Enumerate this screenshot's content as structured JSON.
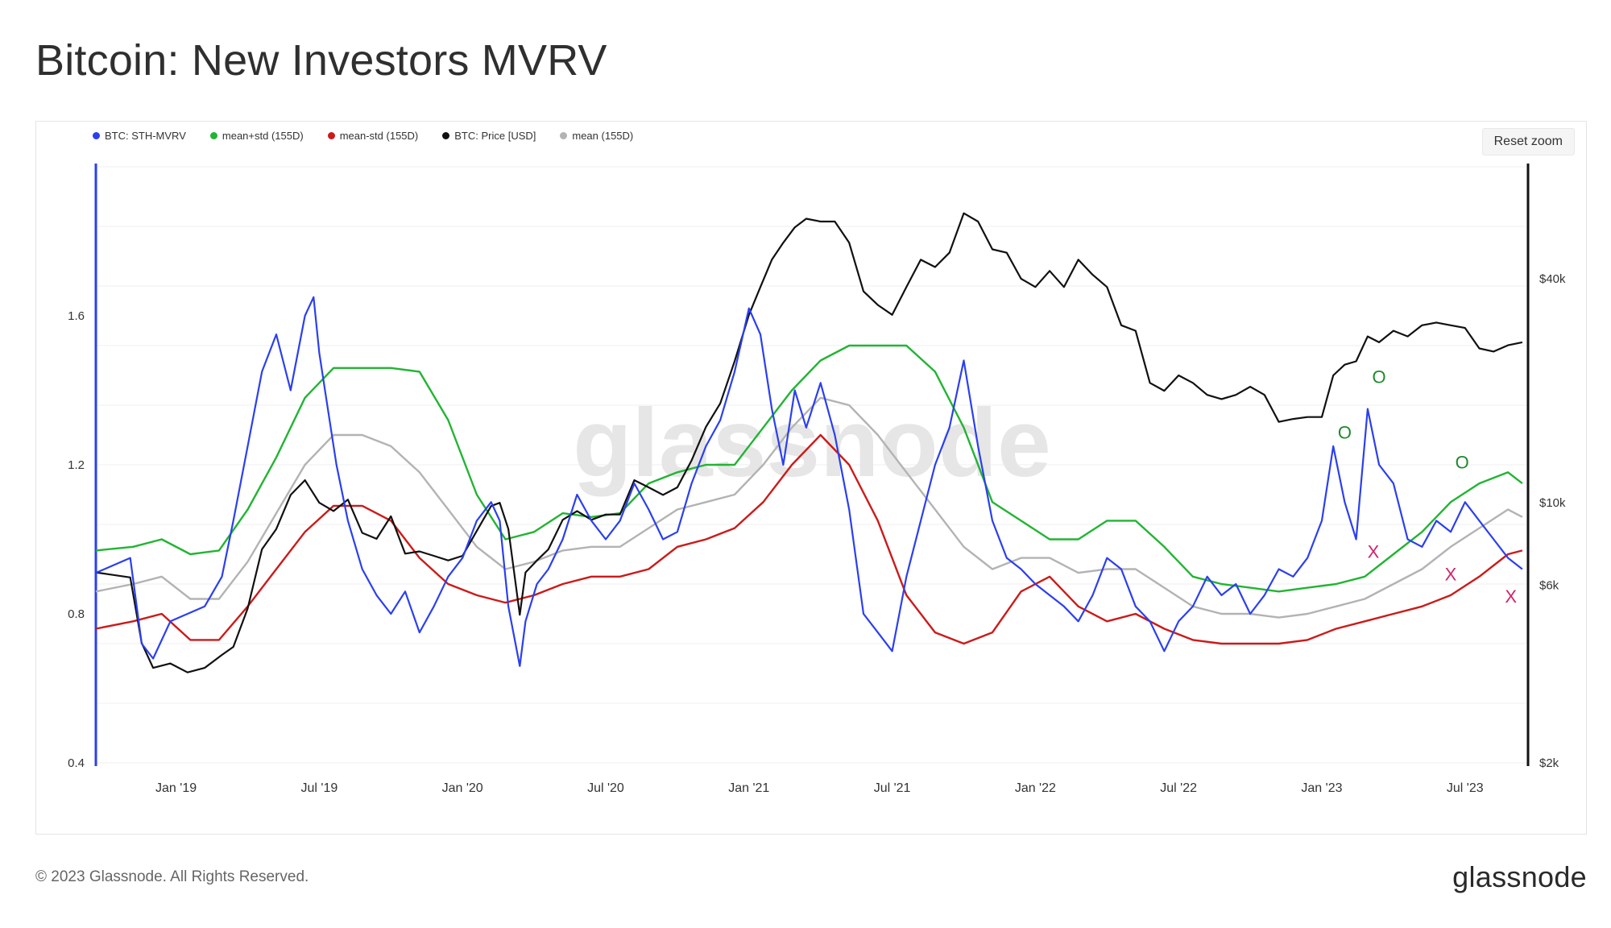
{
  "title": "Bitcoin: New Investors MVRV",
  "reset_zoom_label": "Reset zoom",
  "footer": {
    "copyright": "© 2023 Glassnode. All Rights Reserved.",
    "logo_text": "glassnode"
  },
  "watermark": "glassnode",
  "chart_data": {
    "type": "line",
    "legend_placement": "top-left",
    "grid": true,
    "x_tick_labels": [
      "Jan '19",
      "Jul '19",
      "Jan '20",
      "Jul '20",
      "Jan '21",
      "Jul '21",
      "Jan '22",
      "Jul '22",
      "Jan '23",
      "Jul '23"
    ],
    "x_tick_positions": [
      2019.0,
      2019.5,
      2020.0,
      2020.5,
      2021.0,
      2021.5,
      2022.0,
      2022.5,
      2023.0,
      2023.5
    ],
    "x_range": [
      2018.72,
      2023.72
    ],
    "y_left": {
      "ticks": [
        "0.4",
        "0.8",
        "1.2",
        "1.6"
      ],
      "tick_values": [
        0.4,
        0.8,
        1.2,
        1.6
      ],
      "range": [
        0.4,
        2.0
      ]
    },
    "y_right": {
      "scale": "log",
      "ticks": [
        "$2k",
        "$6k",
        "$10k",
        "$40k"
      ],
      "tick_values": [
        2000,
        6000,
        10000,
        40000
      ],
      "range": [
        2000,
        80000
      ]
    },
    "series": [
      {
        "name": "BTC: STH-MVRV",
        "color": "#2b3ff0",
        "axis": "left",
        "x": [
          2018.72,
          2018.78,
          2018.84,
          2018.88,
          2018.92,
          2018.98,
          2019.04,
          2019.1,
          2019.16,
          2019.2,
          2019.25,
          2019.3,
          2019.35,
          2019.4,
          2019.45,
          2019.48,
          2019.5,
          2019.53,
          2019.56,
          2019.6,
          2019.65,
          2019.7,
          2019.75,
          2019.8,
          2019.85,
          2019.9,
          2019.95,
          2020.0,
          2020.05,
          2020.1,
          2020.13,
          2020.16,
          2020.2,
          2020.22,
          2020.26,
          2020.3,
          2020.35,
          2020.4,
          2020.45,
          2020.5,
          2020.55,
          2020.6,
          2020.65,
          2020.7,
          2020.75,
          2020.8,
          2020.85,
          2020.9,
          2020.95,
          2021.0,
          2021.04,
          2021.08,
          2021.12,
          2021.16,
          2021.2,
          2021.25,
          2021.3,
          2021.35,
          2021.4,
          2021.45,
          2021.5,
          2021.55,
          2021.6,
          2021.65,
          2021.7,
          2021.75,
          2021.8,
          2021.85,
          2021.9,
          2021.95,
          2022.0,
          2022.05,
          2022.1,
          2022.15,
          2022.2,
          2022.25,
          2022.3,
          2022.35,
          2022.4,
          2022.45,
          2022.5,
          2022.55,
          2022.6,
          2022.65,
          2022.7,
          2022.75,
          2022.8,
          2022.85,
          2022.9,
          2022.95,
          2023.0,
          2023.04,
          2023.08,
          2023.12,
          2023.16,
          2023.2,
          2023.25,
          2023.3,
          2023.35,
          2023.4,
          2023.45,
          2023.5,
          2023.55,
          2023.6,
          2023.65,
          2023.7
        ],
        "y": [
          0.91,
          0.93,
          0.95,
          0.72,
          0.68,
          0.78,
          0.8,
          0.82,
          0.9,
          1.05,
          1.25,
          1.45,
          1.55,
          1.4,
          1.6,
          1.65,
          1.5,
          1.35,
          1.2,
          1.05,
          0.92,
          0.85,
          0.8,
          0.86,
          0.75,
          0.82,
          0.9,
          0.95,
          1.05,
          1.1,
          1.05,
          0.82,
          0.66,
          0.78,
          0.88,
          0.92,
          1.0,
          1.12,
          1.05,
          1.0,
          1.05,
          1.15,
          1.08,
          1.0,
          1.02,
          1.15,
          1.25,
          1.32,
          1.45,
          1.62,
          1.55,
          1.35,
          1.2,
          1.4,
          1.3,
          1.42,
          1.28,
          1.08,
          0.8,
          0.75,
          0.7,
          0.9,
          1.05,
          1.2,
          1.3,
          1.48,
          1.25,
          1.05,
          0.95,
          0.92,
          0.88,
          0.85,
          0.82,
          0.78,
          0.85,
          0.95,
          0.92,
          0.82,
          0.78,
          0.7,
          0.78,
          0.82,
          0.9,
          0.85,
          0.88,
          0.8,
          0.85,
          0.92,
          0.9,
          0.95,
          1.05,
          1.25,
          1.1,
          1.0,
          1.35,
          1.2,
          1.15,
          1.0,
          0.98,
          1.05,
          1.02,
          1.1,
          1.05,
          1.0,
          0.95,
          0.92
        ]
      },
      {
        "name": "mean+std (155D)",
        "color": "#22b433",
        "axis": "left",
        "x": [
          2018.72,
          2018.85,
          2018.95,
          2019.05,
          2019.15,
          2019.25,
          2019.35,
          2019.45,
          2019.55,
          2019.65,
          2019.75,
          2019.85,
          2019.95,
          2020.05,
          2020.15,
          2020.25,
          2020.35,
          2020.45,
          2020.55,
          2020.65,
          2020.75,
          2020.85,
          2020.95,
          2021.05,
          2021.15,
          2021.25,
          2021.35,
          2021.45,
          2021.55,
          2021.65,
          2021.75,
          2021.85,
          2021.95,
          2022.05,
          2022.15,
          2022.25,
          2022.35,
          2022.45,
          2022.55,
          2022.65,
          2022.75,
          2022.85,
          2022.95,
          2023.05,
          2023.15,
          2023.25,
          2023.35,
          2023.45,
          2023.55,
          2023.65,
          2023.7
        ],
        "y": [
          0.97,
          0.98,
          1.0,
          0.96,
          0.97,
          1.08,
          1.22,
          1.38,
          1.46,
          1.46,
          1.46,
          1.45,
          1.32,
          1.12,
          1.0,
          1.02,
          1.07,
          1.06,
          1.07,
          1.15,
          1.18,
          1.2,
          1.2,
          1.3,
          1.4,
          1.48,
          1.52,
          1.52,
          1.52,
          1.45,
          1.3,
          1.1,
          1.05,
          1.0,
          1.0,
          1.05,
          1.05,
          0.98,
          0.9,
          0.88,
          0.87,
          0.86,
          0.87,
          0.88,
          0.9,
          0.96,
          1.02,
          1.1,
          1.15,
          1.18,
          1.15
        ]
      },
      {
        "name": "mean-std (155D)",
        "color": "#cc1a1a",
        "axis": "left",
        "x": [
          2018.72,
          2018.85,
          2018.95,
          2019.05,
          2019.15,
          2019.25,
          2019.35,
          2019.45,
          2019.55,
          2019.65,
          2019.75,
          2019.85,
          2019.95,
          2020.05,
          2020.15,
          2020.25,
          2020.35,
          2020.45,
          2020.55,
          2020.65,
          2020.75,
          2020.85,
          2020.95,
          2021.05,
          2021.15,
          2021.25,
          2021.35,
          2021.45,
          2021.55,
          2021.65,
          2021.75,
          2021.85,
          2021.95,
          2022.05,
          2022.15,
          2022.25,
          2022.35,
          2022.45,
          2022.55,
          2022.65,
          2022.75,
          2022.85,
          2022.95,
          2023.05,
          2023.15,
          2023.25,
          2023.35,
          2023.45,
          2023.55,
          2023.65,
          2023.7
        ],
        "y": [
          0.76,
          0.78,
          0.8,
          0.73,
          0.73,
          0.82,
          0.92,
          1.02,
          1.09,
          1.09,
          1.05,
          0.95,
          0.88,
          0.85,
          0.83,
          0.85,
          0.88,
          0.9,
          0.9,
          0.92,
          0.98,
          1.0,
          1.03,
          1.1,
          1.2,
          1.28,
          1.2,
          1.05,
          0.85,
          0.75,
          0.72,
          0.75,
          0.86,
          0.9,
          0.82,
          0.78,
          0.8,
          0.76,
          0.73,
          0.72,
          0.72,
          0.72,
          0.73,
          0.76,
          0.78,
          0.8,
          0.82,
          0.85,
          0.9,
          0.96,
          0.97
        ]
      },
      {
        "name": "BTC: Price [USD]",
        "color": "#111111",
        "axis": "right",
        "x": [
          2018.72,
          2018.78,
          2018.84,
          2018.88,
          2018.92,
          2018.98,
          2019.04,
          2019.1,
          2019.16,
          2019.2,
          2019.25,
          2019.3,
          2019.35,
          2019.4,
          2019.45,
          2019.5,
          2019.55,
          2019.6,
          2019.65,
          2019.7,
          2019.75,
          2019.8,
          2019.85,
          2019.9,
          2019.95,
          2020.0,
          2020.05,
          2020.1,
          2020.13,
          2020.16,
          2020.2,
          2020.22,
          2020.26,
          2020.3,
          2020.35,
          2020.4,
          2020.45,
          2020.5,
          2020.55,
          2020.6,
          2020.65,
          2020.7,
          2020.75,
          2020.8,
          2020.85,
          2020.9,
          2020.95,
          2021.0,
          2021.04,
          2021.08,
          2021.12,
          2021.16,
          2021.2,
          2021.25,
          2021.3,
          2021.35,
          2021.4,
          2021.45,
          2021.5,
          2021.55,
          2021.6,
          2021.65,
          2021.7,
          2021.75,
          2021.8,
          2021.85,
          2021.9,
          2021.95,
          2022.0,
          2022.05,
          2022.1,
          2022.15,
          2022.2,
          2022.25,
          2022.3,
          2022.35,
          2022.4,
          2022.45,
          2022.5,
          2022.55,
          2022.6,
          2022.65,
          2022.7,
          2022.75,
          2022.8,
          2022.85,
          2022.9,
          2022.95,
          2023.0,
          2023.04,
          2023.08,
          2023.12,
          2023.16,
          2023.2,
          2023.25,
          2023.3,
          2023.35,
          2023.4,
          2023.45,
          2023.5,
          2023.55,
          2023.6,
          2023.65,
          2023.7
        ],
        "y": [
          6500,
          6400,
          6300,
          4200,
          3600,
          3700,
          3500,
          3600,
          3900,
          4100,
          5200,
          7500,
          8500,
          10500,
          11500,
          10000,
          9500,
          10200,
          8300,
          8000,
          9200,
          7300,
          7400,
          7200,
          7000,
          7200,
          8400,
          9800,
          10000,
          8500,
          5000,
          6500,
          7000,
          7500,
          9000,
          9500,
          9000,
          9300,
          9300,
          11500,
          11000,
          10500,
          11000,
          13000,
          16000,
          18500,
          24000,
          32000,
          38000,
          45000,
          50000,
          55000,
          58000,
          57000,
          57000,
          50000,
          37000,
          34000,
          32000,
          38000,
          45000,
          43000,
          47000,
          60000,
          57000,
          48000,
          47000,
          40000,
          38000,
          42000,
          38000,
          45000,
          41000,
          38000,
          30000,
          29000,
          21000,
          20000,
          22000,
          21000,
          19500,
          19000,
          19500,
          20500,
          19500,
          16500,
          16800,
          17000,
          17000,
          22000,
          23500,
          24000,
          28000,
          27000,
          29000,
          28000,
          30000,
          30500,
          30000,
          29500,
          26000,
          25500,
          26500,
          27000
        ]
      },
      {
        "name": "mean (155D)",
        "color": "#b3b3b3",
        "axis": "left",
        "x": [
          2018.72,
          2018.85,
          2018.95,
          2019.05,
          2019.15,
          2019.25,
          2019.35,
          2019.45,
          2019.55,
          2019.65,
          2019.75,
          2019.85,
          2019.95,
          2020.05,
          2020.15,
          2020.25,
          2020.35,
          2020.45,
          2020.55,
          2020.65,
          2020.75,
          2020.85,
          2020.95,
          2021.05,
          2021.15,
          2021.25,
          2021.35,
          2021.45,
          2021.55,
          2021.65,
          2021.75,
          2021.85,
          2021.95,
          2022.05,
          2022.15,
          2022.25,
          2022.35,
          2022.45,
          2022.55,
          2022.65,
          2022.75,
          2022.85,
          2022.95,
          2023.05,
          2023.15,
          2023.25,
          2023.35,
          2023.45,
          2023.55,
          2023.65,
          2023.7
        ],
        "y": [
          0.86,
          0.88,
          0.9,
          0.84,
          0.84,
          0.94,
          1.07,
          1.2,
          1.28,
          1.28,
          1.25,
          1.18,
          1.08,
          0.98,
          0.92,
          0.94,
          0.97,
          0.98,
          0.98,
          1.03,
          1.08,
          1.1,
          1.12,
          1.2,
          1.3,
          1.38,
          1.36,
          1.28,
          1.18,
          1.08,
          0.98,
          0.92,
          0.95,
          0.95,
          0.91,
          0.92,
          0.92,
          0.87,
          0.82,
          0.8,
          0.8,
          0.79,
          0.8,
          0.82,
          0.84,
          0.88,
          0.92,
          0.98,
          1.03,
          1.08,
          1.06
        ]
      }
    ],
    "annotations": [
      {
        "text": "O",
        "color": "#1f8a2d",
        "x": 2023.08,
        "y": 1.27
      },
      {
        "text": "O",
        "color": "#1f8a2d",
        "x": 2023.2,
        "y": 1.42
      },
      {
        "text": "O",
        "color": "#1f8a2d",
        "x": 2023.49,
        "y": 1.19
      },
      {
        "text": "X",
        "color": "#d0246b",
        "x": 2023.18,
        "y": 0.95
      },
      {
        "text": "X",
        "color": "#d0246b",
        "x": 2023.45,
        "y": 0.89
      },
      {
        "text": "X",
        "color": "#d0246b",
        "x": 2023.66,
        "y": 0.83
      }
    ]
  }
}
